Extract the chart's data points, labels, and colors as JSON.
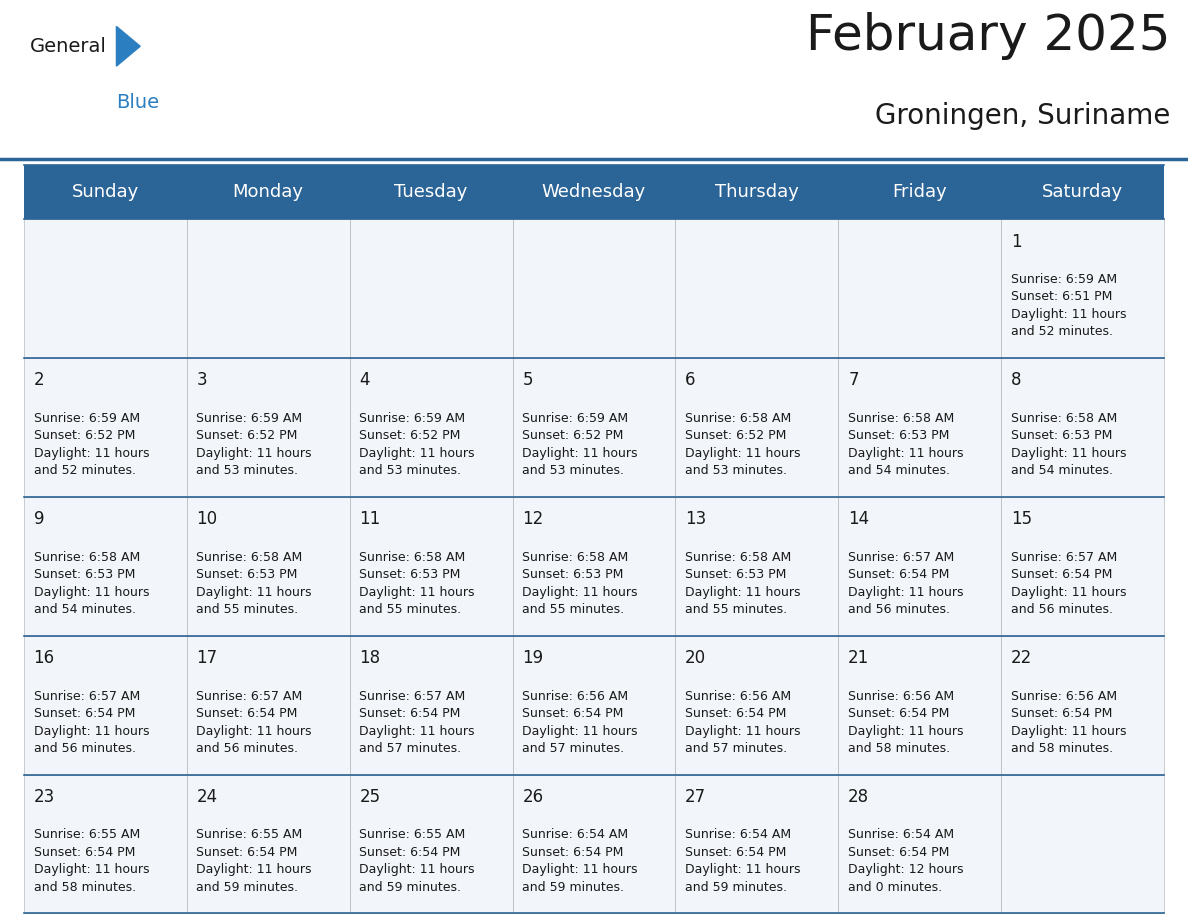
{
  "title": "February 2025",
  "subtitle": "Groningen, Suriname",
  "header_bg": "#2B6496",
  "header_text": "#FFFFFF",
  "border_color": "#2B6496",
  "cell_border_color": "#AAAAAA",
  "cell_bg": "#F2F6FA",
  "text_color": "#1A1A1A",
  "days_of_week": [
    "Sunday",
    "Monday",
    "Tuesday",
    "Wednesday",
    "Thursday",
    "Friday",
    "Saturday"
  ],
  "title_fontsize": 36,
  "subtitle_fontsize": 20,
  "header_fontsize": 13,
  "day_num_fontsize": 12,
  "cell_fontsize": 9,
  "logo_color_general": "#1A1A1A",
  "logo_color_blue": "#2B7FC1",
  "calendar": [
    [
      {
        "day": null,
        "info": ""
      },
      {
        "day": null,
        "info": ""
      },
      {
        "day": null,
        "info": ""
      },
      {
        "day": null,
        "info": ""
      },
      {
        "day": null,
        "info": ""
      },
      {
        "day": null,
        "info": ""
      },
      {
        "day": 1,
        "info": "Sunrise: 6:59 AM\nSunset: 6:51 PM\nDaylight: 11 hours\nand 52 minutes."
      }
    ],
    [
      {
        "day": 2,
        "info": "Sunrise: 6:59 AM\nSunset: 6:52 PM\nDaylight: 11 hours\nand 52 minutes."
      },
      {
        "day": 3,
        "info": "Sunrise: 6:59 AM\nSunset: 6:52 PM\nDaylight: 11 hours\nand 53 minutes."
      },
      {
        "day": 4,
        "info": "Sunrise: 6:59 AM\nSunset: 6:52 PM\nDaylight: 11 hours\nand 53 minutes."
      },
      {
        "day": 5,
        "info": "Sunrise: 6:59 AM\nSunset: 6:52 PM\nDaylight: 11 hours\nand 53 minutes."
      },
      {
        "day": 6,
        "info": "Sunrise: 6:58 AM\nSunset: 6:52 PM\nDaylight: 11 hours\nand 53 minutes."
      },
      {
        "day": 7,
        "info": "Sunrise: 6:58 AM\nSunset: 6:53 PM\nDaylight: 11 hours\nand 54 minutes."
      },
      {
        "day": 8,
        "info": "Sunrise: 6:58 AM\nSunset: 6:53 PM\nDaylight: 11 hours\nand 54 minutes."
      }
    ],
    [
      {
        "day": 9,
        "info": "Sunrise: 6:58 AM\nSunset: 6:53 PM\nDaylight: 11 hours\nand 54 minutes."
      },
      {
        "day": 10,
        "info": "Sunrise: 6:58 AM\nSunset: 6:53 PM\nDaylight: 11 hours\nand 55 minutes."
      },
      {
        "day": 11,
        "info": "Sunrise: 6:58 AM\nSunset: 6:53 PM\nDaylight: 11 hours\nand 55 minutes."
      },
      {
        "day": 12,
        "info": "Sunrise: 6:58 AM\nSunset: 6:53 PM\nDaylight: 11 hours\nand 55 minutes."
      },
      {
        "day": 13,
        "info": "Sunrise: 6:58 AM\nSunset: 6:53 PM\nDaylight: 11 hours\nand 55 minutes."
      },
      {
        "day": 14,
        "info": "Sunrise: 6:57 AM\nSunset: 6:54 PM\nDaylight: 11 hours\nand 56 minutes."
      },
      {
        "day": 15,
        "info": "Sunrise: 6:57 AM\nSunset: 6:54 PM\nDaylight: 11 hours\nand 56 minutes."
      }
    ],
    [
      {
        "day": 16,
        "info": "Sunrise: 6:57 AM\nSunset: 6:54 PM\nDaylight: 11 hours\nand 56 minutes."
      },
      {
        "day": 17,
        "info": "Sunrise: 6:57 AM\nSunset: 6:54 PM\nDaylight: 11 hours\nand 56 minutes."
      },
      {
        "day": 18,
        "info": "Sunrise: 6:57 AM\nSunset: 6:54 PM\nDaylight: 11 hours\nand 57 minutes."
      },
      {
        "day": 19,
        "info": "Sunrise: 6:56 AM\nSunset: 6:54 PM\nDaylight: 11 hours\nand 57 minutes."
      },
      {
        "day": 20,
        "info": "Sunrise: 6:56 AM\nSunset: 6:54 PM\nDaylight: 11 hours\nand 57 minutes."
      },
      {
        "day": 21,
        "info": "Sunrise: 6:56 AM\nSunset: 6:54 PM\nDaylight: 11 hours\nand 58 minutes."
      },
      {
        "day": 22,
        "info": "Sunrise: 6:56 AM\nSunset: 6:54 PM\nDaylight: 11 hours\nand 58 minutes."
      }
    ],
    [
      {
        "day": 23,
        "info": "Sunrise: 6:55 AM\nSunset: 6:54 PM\nDaylight: 11 hours\nand 58 minutes."
      },
      {
        "day": 24,
        "info": "Sunrise: 6:55 AM\nSunset: 6:54 PM\nDaylight: 11 hours\nand 59 minutes."
      },
      {
        "day": 25,
        "info": "Sunrise: 6:55 AM\nSunset: 6:54 PM\nDaylight: 11 hours\nand 59 minutes."
      },
      {
        "day": 26,
        "info": "Sunrise: 6:54 AM\nSunset: 6:54 PM\nDaylight: 11 hours\nand 59 minutes."
      },
      {
        "day": 27,
        "info": "Sunrise: 6:54 AM\nSunset: 6:54 PM\nDaylight: 11 hours\nand 59 minutes."
      },
      {
        "day": 28,
        "info": "Sunrise: 6:54 AM\nSunset: 6:54 PM\nDaylight: 12 hours\nand 0 minutes."
      },
      {
        "day": null,
        "info": ""
      }
    ]
  ]
}
